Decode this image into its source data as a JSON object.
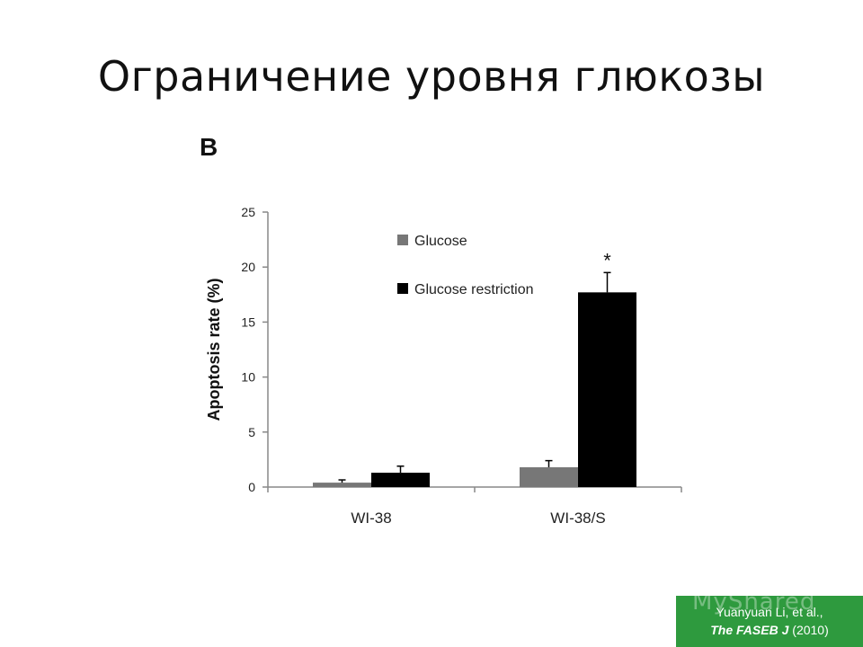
{
  "slide": {
    "title": "Ограничение уровня глюкозы",
    "panel_letter": "B"
  },
  "citation": {
    "authors": "Yuanyuan Li, et al.,",
    "journal": "The FASEB J",
    "year": "(2010)"
  },
  "watermark": {
    "text": "MyShared"
  },
  "colors": {
    "glucose": "#777777",
    "restriction": "#000000",
    "citation_bg": "#2e9a3e"
  },
  "chart_data": {
    "type": "bar",
    "categories": [
      "WI-38",
      "WI-38/S"
    ],
    "series": [
      {
        "name": "Glucose",
        "values": [
          0.4,
          1.8
        ],
        "errors": [
          0.25,
          0.6
        ]
      },
      {
        "name": "Glucose restriction",
        "values": [
          1.3,
          17.7
        ],
        "errors": [
          0.6,
          1.8
        ]
      }
    ],
    "annotations": [
      {
        "category": "WI-38/S",
        "series": "Glucose restriction",
        "text": "*"
      }
    ],
    "ylabel": "Apoptosis rate (%)",
    "xlabel": "",
    "ylim": [
      0,
      25
    ],
    "yticks": [
      0,
      5,
      10,
      15,
      20,
      25
    ],
    "legend_position": "top-center",
    "grid": false
  }
}
